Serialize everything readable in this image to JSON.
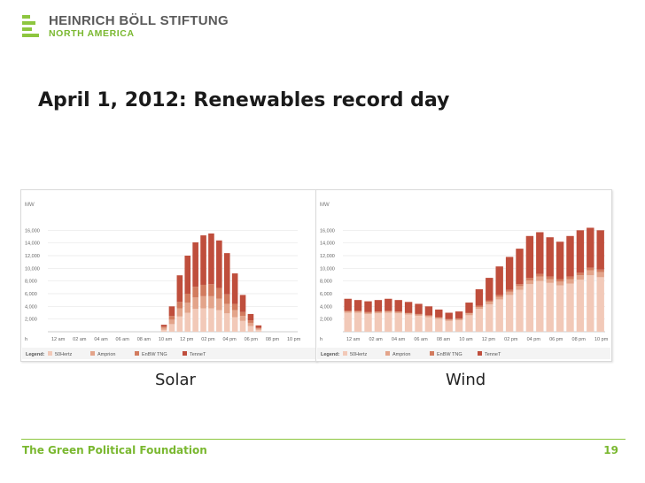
{
  "header": {
    "org_name": "HEINRICH BÖLL STIFTUNG",
    "org_sub": "NORTH AMERICA",
    "brand_color": "#8dc63f"
  },
  "slide": {
    "title": "April 1, 2012: Renewables record day"
  },
  "footer": {
    "text": "The Green Political Foundation",
    "page": "19"
  },
  "series_colors": [
    "#f2c9b8",
    "#e3a48a",
    "#d27b5e",
    "#bf4e3c"
  ],
  "chart_data": [
    {
      "type": "bar",
      "caption": "Solar",
      "unit_label": "MW",
      "yticks": [
        "16,000",
        "14,000",
        "12,000",
        "10,000",
        "8,000",
        "6,000",
        "4,000",
        "2,000"
      ],
      "ylim": [
        0,
        18000
      ],
      "xticks": [
        "h",
        "12 am",
        "02 am",
        "04 am",
        "06 am",
        "08 am",
        "10 am",
        "12 pm",
        "02 pm",
        "04 pm",
        "06 pm",
        "08 pm",
        "10 pm"
      ],
      "legend_label": "Legend:",
      "series_names": [
        "50Hertz",
        "Amprion",
        "EnBW TNG",
        "TenneT"
      ],
      "stacked": true,
      "values": [
        [
          0,
          0,
          0,
          0
        ],
        [
          0,
          0,
          0,
          0
        ],
        [
          0,
          0,
          0,
          0
        ],
        [
          0,
          0,
          0,
          0
        ],
        [
          0,
          0,
          0,
          0
        ],
        [
          0,
          0,
          0,
          0
        ],
        [
          0,
          0,
          0,
          0
        ],
        [
          0,
          0,
          0,
          0
        ],
        [
          0,
          0,
          0,
          0
        ],
        [
          0,
          0,
          0,
          0
        ],
        [
          0,
          0,
          0,
          0
        ],
        [
          0,
          0,
          0,
          0
        ],
        [
          0,
          0,
          0,
          0
        ],
        [
          0,
          0,
          0,
          0
        ],
        [
          300,
          300,
          200,
          300
        ],
        [
          1200,
          700,
          600,
          1500
        ],
        [
          2400,
          1300,
          1000,
          4200
        ],
        [
          3000,
          1600,
          1400,
          6000
        ],
        [
          3600,
          1800,
          1700,
          7000
        ],
        [
          3700,
          1900,
          1800,
          7800
        ],
        [
          3700,
          1900,
          1900,
          8000
        ],
        [
          3400,
          1800,
          1700,
          7500
        ],
        [
          2900,
          1500,
          1500,
          6500
        ],
        [
          2300,
          1100,
          1000,
          4800
        ],
        [
          1700,
          800,
          600,
          2700
        ],
        [
          900,
          500,
          400,
          1000
        ],
        [
          300,
          200,
          100,
          400
        ],
        [
          0,
          0,
          0,
          0
        ],
        [
          0,
          0,
          0,
          0
        ],
        [
          0,
          0,
          0,
          0
        ]
      ]
    },
    {
      "type": "bar",
      "caption": "Wind",
      "unit_label": "MW",
      "yticks": [
        "16,000",
        "14,000",
        "12,000",
        "10,000",
        "8,000",
        "6,000",
        "4,000",
        "2,000"
      ],
      "ylim": [
        0,
        18000
      ],
      "xticks": [
        "h",
        "12 am",
        "02 am",
        "04 am",
        "06 am",
        "08 am",
        "10 am",
        "12 pm",
        "02 pm",
        "04 pm",
        "06 pm",
        "08 pm",
        "10 pm"
      ],
      "legend_label": "Legend:",
      "series_names": [
        "50Hertz",
        "Amprion",
        "EnBW TNG",
        "TenneT"
      ],
      "stacked": true,
      "values": [
        [
          3000,
          200,
          100,
          1900
        ],
        [
          3000,
          200,
          100,
          1700
        ],
        [
          2800,
          200,
          100,
          1700
        ],
        [
          2900,
          200,
          100,
          1800
        ],
        [
          3000,
          200,
          100,
          1900
        ],
        [
          2900,
          200,
          100,
          1800
        ],
        [
          2700,
          200,
          100,
          1700
        ],
        [
          2500,
          200,
          100,
          1600
        ],
        [
          2300,
          200,
          100,
          1400
        ],
        [
          2000,
          200,
          100,
          1200
        ],
        [
          1700,
          200,
          100,
          1000
        ],
        [
          1800,
          200,
          100,
          1100
        ],
        [
          2600,
          300,
          100,
          1600
        ],
        [
          3600,
          300,
          200,
          2600
        ],
        [
          4300,
          400,
          200,
          3600
        ],
        [
          5100,
          400,
          300,
          4500
        ],
        [
          5800,
          500,
          300,
          5200
        ],
        [
          6600,
          600,
          300,
          5600
        ],
        [
          7500,
          600,
          400,
          6600
        ],
        [
          8000,
          700,
          400,
          6600
        ],
        [
          7700,
          600,
          400,
          6200
        ],
        [
          7300,
          600,
          400,
          5900
        ],
        [
          7600,
          700,
          400,
          6400
        ],
        [
          8200,
          700,
          400,
          6700
        ],
        [
          8900,
          800,
          400,
          6300
        ],
        [
          8600,
          800,
          400,
          6200
        ]
      ]
    }
  ]
}
